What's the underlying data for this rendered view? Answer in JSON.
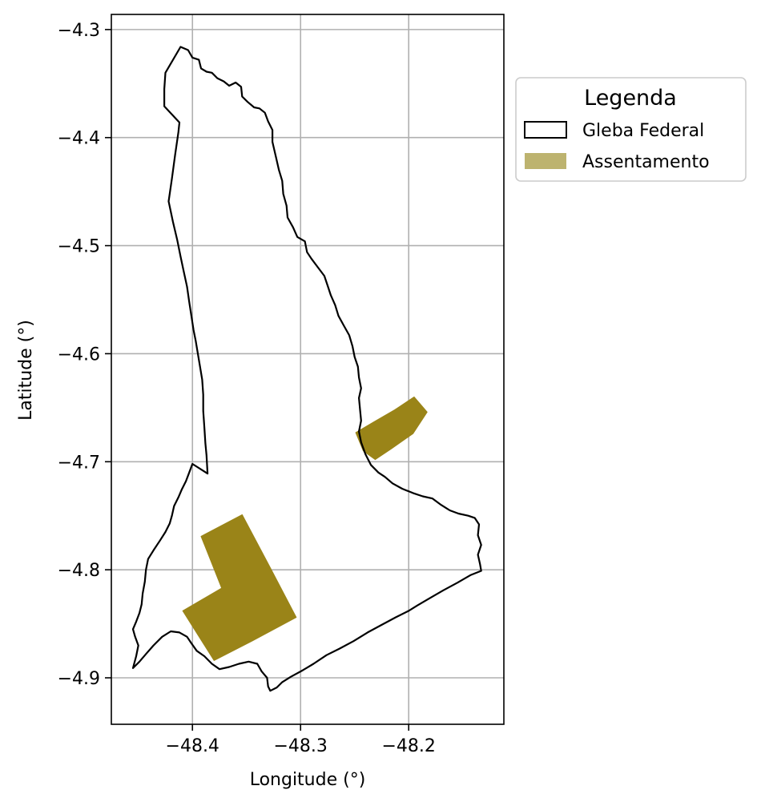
{
  "chart_data": {
    "type": "map",
    "title": "",
    "xlabel": "Longitude (°)",
    "ylabel": "Latitude (°)",
    "xlim": [
      -48.475,
      -48.112
    ],
    "ylim": [
      -4.943,
      -4.286
    ],
    "xticks": [
      -48.4,
      -48.3,
      -48.2
    ],
    "yticks": [
      -4.3,
      -4.4,
      -4.5,
      -4.6,
      -4.7,
      -4.8,
      -4.9
    ],
    "xtick_labels": [
      "−48.4",
      "−48.3",
      "−48.2"
    ],
    "ytick_labels": [
      "−4.3",
      "−4.4",
      "−4.5",
      "−4.6",
      "−4.7",
      "−4.8",
      "−4.9"
    ],
    "grid": true,
    "legend": {
      "title": "Legenda",
      "placement": "outside-upper-right",
      "entries": [
        {
          "label": "Gleba Federal",
          "style": "outline",
          "color": "#000000"
        },
        {
          "label": "Assentamento",
          "style": "fill",
          "color": "#bdb36f"
        }
      ]
    },
    "colors": {
      "gleba_outline": "#000000",
      "assentamento_fill": "#9a8418",
      "assentamento_legend": "#bdb36f",
      "grid": "#b0b0b0"
    },
    "series": [
      {
        "name": "Gleba Federal",
        "kind": "outline",
        "polygons": [
          [
            [
              -48.411,
              -4.316
            ],
            [
              -48.404,
              -4.319
            ],
            [
              -48.4,
              -4.326
            ],
            [
              -48.394,
              -4.328
            ],
            [
              -48.392,
              -4.336
            ],
            [
              -48.387,
              -4.339
            ],
            [
              -48.382,
              -4.34
            ],
            [
              -48.377,
              -4.345
            ],
            [
              -48.371,
              -4.348
            ],
            [
              -48.366,
              -4.352
            ],
            [
              -48.36,
              -4.349
            ],
            [
              -48.355,
              -4.353
            ],
            [
              -48.354,
              -4.362
            ],
            [
              -48.349,
              -4.367
            ],
            [
              -48.343,
              -4.372
            ],
            [
              -48.338,
              -4.373
            ],
            [
              -48.333,
              -4.377
            ],
            [
              -48.33,
              -4.385
            ],
            [
              -48.326,
              -4.393
            ],
            [
              -48.326,
              -4.404
            ],
            [
              -48.323,
              -4.417
            ],
            [
              -48.32,
              -4.43
            ],
            [
              -48.317,
              -4.44
            ],
            [
              -48.316,
              -4.452
            ],
            [
              -48.313,
              -4.463
            ],
            [
              -48.312,
              -4.474
            ],
            [
              -48.307,
              -4.483
            ],
            [
              -48.303,
              -4.492
            ],
            [
              -48.296,
              -4.496
            ],
            [
              -48.294,
              -4.506
            ],
            [
              -48.29,
              -4.512
            ],
            [
              -48.284,
              -4.52
            ],
            [
              -48.278,
              -4.528
            ],
            [
              -48.275,
              -4.537
            ],
            [
              -48.272,
              -4.546
            ],
            [
              -48.268,
              -4.555
            ],
            [
              -48.265,
              -4.565
            ],
            [
              -48.26,
              -4.574
            ],
            [
              -48.255,
              -4.583
            ],
            [
              -48.252,
              -4.593
            ],
            [
              -48.25,
              -4.603
            ],
            [
              -48.247,
              -4.612
            ],
            [
              -48.246,
              -4.622
            ],
            [
              -48.244,
              -4.632
            ],
            [
              -48.246,
              -4.641
            ],
            [
              -48.245,
              -4.652
            ],
            [
              -48.244,
              -4.662
            ],
            [
              -48.246,
              -4.672
            ],
            [
              -48.244,
              -4.682
            ],
            [
              -48.24,
              -4.693
            ],
            [
              -48.235,
              -4.703
            ],
            [
              -48.228,
              -4.71
            ],
            [
              -48.222,
              -4.714
            ],
            [
              -48.215,
              -4.72
            ],
            [
              -48.206,
              -4.725
            ],
            [
              -48.196,
              -4.729
            ],
            [
              -48.187,
              -4.732
            ],
            [
              -48.178,
              -4.734
            ],
            [
              -48.17,
              -4.74
            ],
            [
              -48.162,
              -4.745
            ],
            [
              -48.154,
              -4.748
            ],
            [
              -48.145,
              -4.75
            ],
            [
              -48.139,
              -4.752
            ],
            [
              -48.135,
              -4.758
            ],
            [
              -48.136,
              -4.768
            ],
            [
              -48.133,
              -4.777
            ],
            [
              -48.136,
              -4.786
            ],
            [
              -48.134,
              -4.795
            ],
            [
              -48.133,
              -4.801
            ],
            [
              -48.143,
              -4.805
            ],
            [
              -48.155,
              -4.812
            ],
            [
              -48.168,
              -4.819
            ],
            [
              -48.18,
              -4.826
            ],
            [
              -48.192,
              -4.833
            ],
            [
              -48.2,
              -4.838
            ],
            [
              -48.212,
              -4.844
            ],
            [
              -48.225,
              -4.851
            ],
            [
              -48.238,
              -4.858
            ],
            [
              -48.251,
              -4.866
            ],
            [
              -48.264,
              -4.873
            ],
            [
              -48.276,
              -4.879
            ],
            [
              -48.288,
              -4.887
            ],
            [
              -48.298,
              -4.893
            ],
            [
              -48.309,
              -4.899
            ],
            [
              -48.317,
              -4.904
            ],
            [
              -48.322,
              -4.909
            ],
            [
              -48.328,
              -4.912
            ],
            [
              -48.33,
              -4.908
            ],
            [
              -48.331,
              -4.9
            ],
            [
              -48.336,
              -4.894
            ],
            [
              -48.34,
              -4.887
            ],
            [
              -48.348,
              -4.885
            ],
            [
              -48.357,
              -4.887
            ],
            [
              -48.366,
              -4.89
            ],
            [
              -48.375,
              -4.892
            ],
            [
              -48.382,
              -4.887
            ],
            [
              -48.389,
              -4.88
            ],
            [
              -48.396,
              -4.875
            ],
            [
              -48.401,
              -4.868
            ],
            [
              -48.405,
              -4.862
            ],
            [
              -48.412,
              -4.858
            ],
            [
              -48.42,
              -4.857
            ],
            [
              -48.428,
              -4.862
            ],
            [
              -48.436,
              -4.87
            ],
            [
              -48.443,
              -4.878
            ],
            [
              -48.449,
              -4.885
            ],
            [
              -48.455,
              -4.891
            ],
            [
              -48.452,
              -4.88
            ],
            [
              -48.45,
              -4.87
            ],
            [
              -48.453,
              -4.862
            ],
            [
              -48.455,
              -4.855
            ],
            [
              -48.452,
              -4.848
            ],
            [
              -48.449,
              -4.84
            ],
            [
              -48.447,
              -4.832
            ],
            [
              -48.446,
              -4.822
            ],
            [
              -48.444,
              -4.811
            ],
            [
              -48.443,
              -4.8
            ],
            [
              -48.441,
              -4.79
            ],
            [
              -48.436,
              -4.782
            ],
            [
              -48.43,
              -4.773
            ],
            [
              -48.425,
              -4.765
            ],
            [
              -48.421,
              -4.757
            ],
            [
              -48.419,
              -4.75
            ],
            [
              -48.417,
              -4.741
            ],
            [
              -48.413,
              -4.733
            ],
            [
              -48.41,
              -4.726
            ],
            [
              -48.406,
              -4.718
            ],
            [
              -48.403,
              -4.71
            ],
            [
              -48.4,
              -4.702
            ],
            [
              -48.386,
              -4.711
            ],
            [
              -48.387,
              -4.694
            ],
            [
              -48.388,
              -4.683
            ],
            [
              -48.389,
              -4.668
            ],
            [
              -48.39,
              -4.653
            ],
            [
              -48.39,
              -4.638
            ],
            [
              -48.391,
              -4.624
            ],
            [
              -48.393,
              -4.612
            ],
            [
              -48.395,
              -4.6
            ],
            [
              -48.397,
              -4.588
            ],
            [
              -48.399,
              -4.578
            ],
            [
              -48.401,
              -4.565
            ],
            [
              -48.403,
              -4.552
            ],
            [
              -48.405,
              -4.538
            ],
            [
              -48.408,
              -4.524
            ],
            [
              -48.411,
              -4.51
            ],
            [
              -48.414,
              -4.495
            ],
            [
              -48.418,
              -4.478
            ],
            [
              -48.422,
              -4.459
            ],
            [
              -48.419,
              -4.438
            ],
            [
              -48.416,
              -4.416
            ],
            [
              -48.413,
              -4.395
            ],
            [
              -48.412,
              -4.386
            ],
            [
              -48.426,
              -4.371
            ],
            [
              -48.426,
              -4.355
            ],
            [
              -48.425,
              -4.34
            ],
            [
              -48.411,
              -4.316
            ]
          ]
        ]
      },
      {
        "name": "Assentamento",
        "kind": "fill",
        "polygons": [
          [
            [
              -48.392,
              -4.769
            ],
            [
              -48.354,
              -4.749
            ],
            [
              -48.327,
              -4.8
            ],
            [
              -48.304,
              -4.844
            ],
            [
              -48.345,
              -4.866
            ],
            [
              -48.38,
              -4.884
            ],
            [
              -48.409,
              -4.838
            ],
            [
              -48.373,
              -4.817
            ]
          ],
          [
            [
              -48.249,
              -4.673
            ],
            [
              -48.232,
              -4.663
            ],
            [
              -48.213,
              -4.652
            ],
            [
              -48.195,
              -4.64
            ],
            [
              -48.183,
              -4.654
            ],
            [
              -48.196,
              -4.674
            ],
            [
              -48.216,
              -4.688
            ],
            [
              -48.231,
              -4.698
            ],
            [
              -48.242,
              -4.69
            ]
          ]
        ]
      }
    ]
  }
}
